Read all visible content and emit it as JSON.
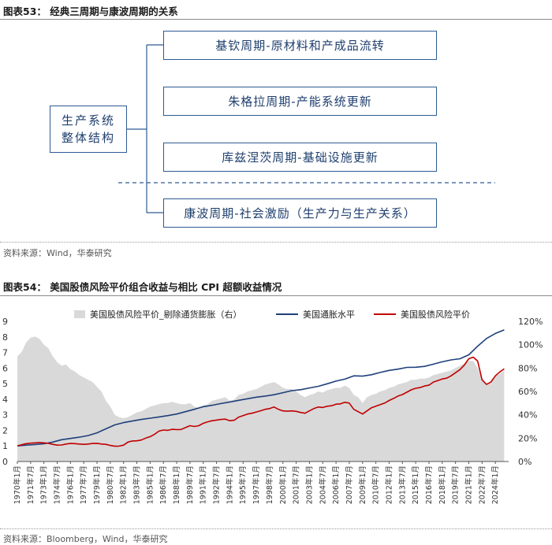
{
  "figure53": {
    "title": "图表53：  经典三周期与康波周期的关系",
    "root_line1": "生产系统",
    "root_line2": "整体结构",
    "cycles": [
      "基钦周期-原材料和产成品流转",
      "朱格拉周期-产能系统更新",
      "库兹涅茨周期-基础设施更新",
      "康波周期-社会激励（生产力与生产关系）"
    ],
    "source": "资料来源：Wind，华泰研究",
    "colors": {
      "box_border": "#2d5a93",
      "box_text": "#1f3f6e",
      "dash_line": "#2d5a93"
    }
  },
  "figure54": {
    "title": "图表54：  美国股债风险平价组合收益与相比 CPI 超额收益情况",
    "source": "资料来源：Bloomberg，Wind，华泰研究"
  },
  "chart_data": {
    "type": "line",
    "legend": [
      {
        "name": "美国股债风险平价_剔除通货膨胀（右）",
        "kind": "area",
        "color": "#d9d9d9"
      },
      {
        "name": "美国通胀水平",
        "kind": "line",
        "color": "#1f3f7a"
      },
      {
        "name": "美国股债风险平价",
        "kind": "line",
        "color": "#c00000"
      }
    ],
    "left_axis": {
      "min": 0,
      "max": 9,
      "ticks": [
        "0",
        "1",
        "2",
        "3",
        "4",
        "5",
        "6",
        "7",
        "8",
        "9"
      ]
    },
    "right_axis": {
      "min": 0,
      "max": 1.2,
      "ticks": [
        "0%",
        "20%",
        "40%",
        "60%",
        "80%",
        "100%",
        "120%"
      ]
    },
    "x_range": [
      1970.0,
      2025.5
    ],
    "x_tick_labels": [
      "1970年1月",
      "1971年7月",
      "1973年1月",
      "1974年7月",
      "1976年1月",
      "1977年7月",
      "1979年1月",
      "1980年7月",
      "1982年1月",
      "1983年7月",
      "1985年1月",
      "1986年7月",
      "1988年1月",
      "1989年7月",
      "1991年1月",
      "1992年7月",
      "1994年1月",
      "1995年7月",
      "1997年1月",
      "1998年7月",
      "2000年1月",
      "2001年7月",
      "2003年1月",
      "2004年7月",
      "2006年1月",
      "2007年7月",
      "2009年1月",
      "2010年7月",
      "2012年1月",
      "2013年7月",
      "2015年1月",
      "2016年7月",
      "2018年1月",
      "2019年7月",
      "2021年1月",
      "2022年7月",
      "2024年1月"
    ],
    "series": [
      {
        "name": "美国股债风险平价_剔除通货膨胀（右）",
        "axis": "right",
        "x": [
          1970.0,
          1970.5,
          1971.0,
          1971.5,
          1972.0,
          1972.5,
          1973.0,
          1973.5,
          1974.0,
          1974.5,
          1975.0,
          1975.5,
          1976.0,
          1976.5,
          1977.0,
          1977.5,
          1978.0,
          1978.5,
          1979.0,
          1979.5,
          1980.0,
          1980.5,
          1981.0,
          1981.5,
          1982.0,
          1982.5,
          1983.0,
          1983.5,
          1984.0,
          1984.5,
          1985.0,
          1985.5,
          1986.0,
          1986.5,
          1987.0,
          1987.5,
          1988.0,
          1988.5,
          1989.0,
          1989.5,
          1990.0,
          1990.5,
          1991.0,
          1991.5,
          1992.0,
          1992.5,
          1993.0,
          1993.5,
          1994.0,
          1994.5,
          1995.0,
          1995.5,
          1996.0,
          1996.5,
          1997.0,
          1997.5,
          1998.0,
          1998.5,
          1999.0,
          1999.5,
          2000.0,
          2000.5,
          2001.0,
          2001.5,
          2002.0,
          2002.5,
          2003.0,
          2003.5,
          2004.0,
          2004.5,
          2005.0,
          2005.5,
          2006.0,
          2006.5,
          2007.0,
          2007.5,
          2008.0,
          2008.5,
          2009.0,
          2009.5,
          2010.0,
          2010.5,
          2011.0,
          2011.5,
          2012.0,
          2012.5,
          2013.0,
          2013.5,
          2014.0,
          2014.5,
          2015.0,
          2015.5,
          2016.0,
          2016.5,
          2017.0,
          2017.5,
          2018.0,
          2018.5,
          2019.0,
          2019.5,
          2020.0,
          2020.5,
          2021.0,
          2021.5,
          2022.0,
          2022.5,
          2023.0,
          2023.5,
          2024.0,
          2024.5,
          2025.0
        ],
        "values": [
          0.9,
          0.94,
          1.02,
          1.06,
          1.07,
          1.05,
          1.0,
          0.97,
          0.9,
          0.85,
          0.82,
          0.83,
          0.79,
          0.77,
          0.74,
          0.72,
          0.7,
          0.68,
          0.64,
          0.6,
          0.52,
          0.47,
          0.4,
          0.38,
          0.37,
          0.38,
          0.4,
          0.42,
          0.43,
          0.45,
          0.47,
          0.48,
          0.49,
          0.5,
          0.5,
          0.51,
          0.5,
          0.49,
          0.49,
          0.5,
          0.47,
          0.46,
          0.48,
          0.49,
          0.52,
          0.53,
          0.54,
          0.55,
          0.52,
          0.53,
          0.57,
          0.58,
          0.6,
          0.61,
          0.62,
          0.64,
          0.66,
          0.67,
          0.68,
          0.66,
          0.63,
          0.62,
          0.62,
          0.6,
          0.57,
          0.55,
          0.57,
          0.58,
          0.6,
          0.59,
          0.61,
          0.62,
          0.63,
          0.63,
          0.65,
          0.63,
          0.57,
          0.55,
          0.5,
          0.55,
          0.57,
          0.58,
          0.6,
          0.61,
          0.63,
          0.64,
          0.66,
          0.67,
          0.68,
          0.7,
          0.7,
          0.71,
          0.71,
          0.72,
          0.74,
          0.75,
          0.76,
          0.77,
          0.78,
          0.8,
          0.82,
          0.84,
          0.86,
          0.86,
          0.8,
          0.7,
          0.66,
          0.68,
          0.73,
          0.75,
          0.78
        ]
      },
      {
        "name": "美国通胀水平",
        "axis": "left",
        "x": [
          1970.0,
          1971.0,
          1972.0,
          1973.0,
          1974.0,
          1975.0,
          1976.0,
          1977.0,
          1978.0,
          1979.0,
          1980.0,
          1981.0,
          1982.0,
          1983.0,
          1984.0,
          1985.0,
          1986.0,
          1987.0,
          1988.0,
          1989.0,
          1990.0,
          1991.0,
          1992.0,
          1993.0,
          1994.0,
          1995.0,
          1996.0,
          1997.0,
          1998.0,
          1999.0,
          2000.0,
          2001.0,
          2002.0,
          2003.0,
          2004.0,
          2005.0,
          2006.0,
          2007.0,
          2008.0,
          2009.0,
          2010.0,
          2011.0,
          2012.0,
          2013.0,
          2014.0,
          2015.0,
          2016.0,
          2017.0,
          2018.0,
          2019.0,
          2020.0,
          2021.0,
          2022.0,
          2023.0,
          2024.0,
          2025.0
        ],
        "values": [
          1.0,
          1.05,
          1.09,
          1.14,
          1.25,
          1.4,
          1.48,
          1.56,
          1.67,
          1.84,
          2.1,
          2.35,
          2.5,
          2.6,
          2.7,
          2.78,
          2.86,
          2.95,
          3.05,
          3.2,
          3.35,
          3.52,
          3.61,
          3.72,
          3.82,
          3.93,
          4.03,
          4.13,
          4.2,
          4.29,
          4.42,
          4.55,
          4.61,
          4.72,
          4.83,
          4.99,
          5.16,
          5.29,
          5.5,
          5.48,
          5.57,
          5.72,
          5.85,
          5.93,
          6.04,
          6.05,
          6.11,
          6.25,
          6.4,
          6.52,
          6.6,
          6.85,
          7.4,
          7.9,
          8.22,
          8.45
        ]
      },
      {
        "name": "美国股债风险平价",
        "axis": "left",
        "x": [
          1970.0,
          1970.5,
          1971.0,
          1971.5,
          1972.0,
          1972.5,
          1973.0,
          1973.5,
          1974.0,
          1974.5,
          1975.0,
          1975.5,
          1976.0,
          1976.5,
          1977.0,
          1977.5,
          1978.0,
          1978.5,
          1979.0,
          1979.5,
          1980.0,
          1980.5,
          1981.0,
          1981.5,
          1982.0,
          1982.5,
          1983.0,
          1983.5,
          1984.0,
          1984.5,
          1985.0,
          1985.5,
          1986.0,
          1986.5,
          1987.0,
          1987.5,
          1988.0,
          1988.5,
          1989.0,
          1989.5,
          1990.0,
          1990.5,
          1991.0,
          1991.5,
          1992.0,
          1992.5,
          1993.0,
          1993.5,
          1994.0,
          1994.5,
          1995.0,
          1995.5,
          1996.0,
          1996.5,
          1997.0,
          1997.5,
          1998.0,
          1998.5,
          1999.0,
          1999.5,
          2000.0,
          2000.5,
          2001.0,
          2001.5,
          2002.0,
          2002.5,
          2003.0,
          2003.5,
          2004.0,
          2004.5,
          2005.0,
          2005.5,
          2006.0,
          2006.5,
          2007.0,
          2007.5,
          2008.0,
          2008.5,
          2009.0,
          2009.5,
          2010.0,
          2010.5,
          2011.0,
          2011.5,
          2012.0,
          2012.5,
          2013.0,
          2013.5,
          2014.0,
          2014.5,
          2015.0,
          2015.5,
          2016.0,
          2016.5,
          2017.0,
          2017.5,
          2018.0,
          2018.5,
          2019.0,
          2019.5,
          2020.0,
          2020.5,
          2021.0,
          2021.5,
          2022.0,
          2022.5,
          2023.0,
          2023.5,
          2024.0,
          2024.5,
          2025.0
        ],
        "values": [
          1.0,
          1.08,
          1.15,
          1.18,
          1.2,
          1.22,
          1.2,
          1.17,
          1.1,
          1.05,
          1.06,
          1.12,
          1.16,
          1.15,
          1.12,
          1.1,
          1.12,
          1.16,
          1.17,
          1.12,
          1.1,
          1.03,
          0.98,
          0.99,
          1.05,
          1.25,
          1.32,
          1.33,
          1.38,
          1.5,
          1.6,
          1.75,
          1.95,
          2.02,
          2.0,
          2.07,
          2.05,
          2.06,
          2.18,
          2.3,
          2.25,
          2.3,
          2.45,
          2.55,
          2.62,
          2.66,
          2.7,
          2.72,
          2.62,
          2.65,
          2.85,
          2.95,
          3.05,
          3.1,
          3.18,
          3.26,
          3.35,
          3.4,
          3.5,
          3.35,
          3.25,
          3.23,
          3.25,
          3.22,
          3.15,
          3.1,
          3.25,
          3.4,
          3.5,
          3.47,
          3.55,
          3.58,
          3.68,
          3.7,
          3.8,
          3.75,
          3.35,
          3.2,
          3.05,
          3.25,
          3.45,
          3.55,
          3.65,
          3.75,
          3.92,
          4.05,
          4.2,
          4.3,
          4.45,
          4.6,
          4.7,
          4.75,
          4.85,
          4.9,
          5.1,
          5.2,
          5.3,
          5.35,
          5.5,
          5.7,
          5.9,
          6.2,
          6.6,
          6.7,
          6.45,
          5.25,
          4.95,
          5.1,
          5.5,
          5.75,
          5.95
        ]
      }
    ]
  }
}
